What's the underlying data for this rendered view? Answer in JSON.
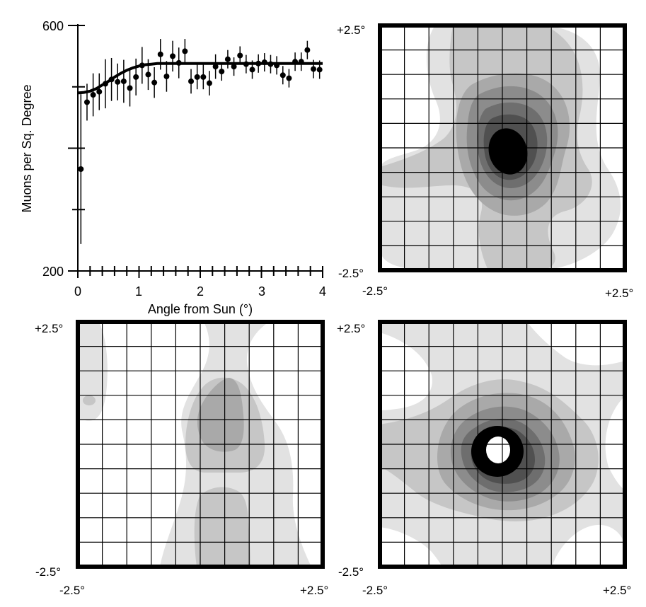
{
  "chart_data": [
    {
      "type": "scatter",
      "xlabel": "Angle from Sun (°)",
      "ylabel": "Muons per Sq. Degree",
      "xlim": [
        0,
        4
      ],
      "ylim": [
        200,
        600
      ],
      "x_tick_labels": [
        "0",
        "1",
        "2",
        "3",
        "4"
      ],
      "y_tick_labels": [
        "200",
        "600"
      ],
      "series": [
        {
          "type": "points_with_error_bars",
          "x": [
            0.05,
            0.15,
            0.25,
            0.35,
            0.45,
            0.55,
            0.65,
            0.75,
            0.85,
            0.95,
            1.05,
            1.15,
            1.25,
            1.35,
            1.45,
            1.55,
            1.65,
            1.75,
            1.85,
            1.95,
            2.05,
            2.15,
            2.25,
            2.35,
            2.45,
            2.55,
            2.65,
            2.75,
            2.85,
            2.95,
            3.05,
            3.15,
            3.25,
            3.35,
            3.45,
            3.55,
            3.65,
            3.75,
            3.85,
            3.95
          ],
          "y": [
            366,
            475,
            487,
            492,
            505,
            512,
            508,
            509,
            498,
            516,
            535,
            520,
            507,
            553,
            517,
            550,
            539,
            558,
            509,
            516,
            516,
            506,
            533,
            525,
            545,
            533,
            551,
            537,
            528,
            538,
            540,
            537,
            535,
            519,
            514,
            541,
            541,
            560,
            529,
            528
          ],
          "yerr": [
            122,
            30,
            35,
            30,
            40,
            35,
            30,
            35,
            30,
            30,
            30,
            25,
            25,
            25,
            25,
            25,
            25,
            20,
            20,
            20,
            20,
            20,
            20,
            15,
            15,
            15,
            15,
            15,
            15,
            15,
            15,
            15,
            15,
            15,
            15,
            15,
            15,
            15,
            15,
            15
          ]
        },
        {
          "type": "fit_curve",
          "x": [
            0.0,
            0.1,
            0.2,
            0.3,
            0.4,
            0.5,
            0.6,
            0.7,
            0.8,
            0.9,
            1.0,
            1.1,
            1.2,
            1.3,
            1.4,
            1.5,
            1.6,
            2.0,
            2.5,
            3.0,
            3.5,
            4.0
          ],
          "y": [
            490,
            491,
            493,
            497,
            503,
            509,
            516,
            522,
            527,
            531,
            534,
            536,
            537,
            538,
            538,
            538,
            538,
            538,
            538,
            538,
            538,
            538
          ]
        }
      ]
    },
    {
      "type": "heatmap",
      "panel": "top-right",
      "xlim": [
        -2.5,
        2.5
      ],
      "ylim": [
        -2.5,
        2.5
      ],
      "x_tick_labels": [
        "-2.5°",
        "+2.5°"
      ],
      "y_tick_labels": [
        "+2.5°",
        "-2.5°"
      ],
      "grid": true,
      "center": [
        0,
        0
      ],
      "peak_level": "black"
    },
    {
      "type": "heatmap",
      "panel": "bottom-left",
      "xlim": [
        -2.5,
        2.5
      ],
      "ylim": [
        -2.5,
        2.5
      ],
      "x_tick_labels": [
        "-2.5°",
        "+2.5°"
      ],
      "y_tick_labels": [
        "+2.5°",
        "-2.5°"
      ],
      "grid": true,
      "peak_level": "medium gray"
    },
    {
      "type": "heatmap",
      "panel": "bottom-right",
      "xlim": [
        -2.5,
        2.5
      ],
      "ylim": [
        -2.5,
        2.5
      ],
      "x_tick_labels": [
        "-2.5°",
        "+2.5°"
      ],
      "y_tick_labels": [
        "+2.5°",
        "-2.5°"
      ],
      "grid": true,
      "center": [
        0,
        0
      ],
      "peak_level": "black ring with white core"
    }
  ],
  "colors": {
    "levels": [
      "#ffffff",
      "#e2e2e2",
      "#c6c6c6",
      "#a9a9a9",
      "#8c8c8c",
      "#6e6e6e",
      "#505050",
      "#000000"
    ]
  }
}
